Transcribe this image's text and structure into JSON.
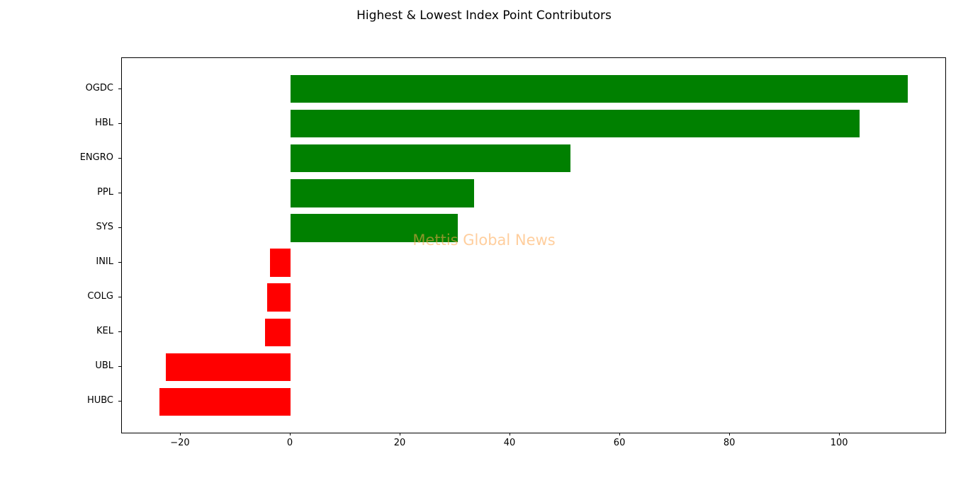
{
  "figure": {
    "watermark": {
      "text": "Mettis Global News",
      "color": "rgba(255, 166, 77, 0.55)"
    }
  },
  "chart_data": {
    "type": "bar",
    "orientation": "horizontal",
    "title": "Highest & Lowest Index Point Contributors",
    "categories": [
      "OGDC",
      "HBL",
      "ENGRO",
      "PPL",
      "SYS",
      "INIL",
      "COLG",
      "KEL",
      "UBL",
      "HUBC"
    ],
    "values": [
      112.4,
      103.6,
      51.0,
      33.4,
      30.5,
      -3.7,
      -4.3,
      -4.7,
      -22.7,
      -23.8
    ],
    "positive_color": "#008000",
    "negative_color": "#ff0000",
    "xlabel": "",
    "ylabel": "",
    "xlim": [
      -30.7,
      119.2
    ],
    "xticks": [
      -20,
      0,
      20,
      40,
      60,
      80,
      100
    ],
    "xtick_labels": [
      "−20",
      "0",
      "20",
      "40",
      "60",
      "80",
      "100"
    ],
    "bar_height_frac": 0.8,
    "grid": false,
    "legend": false
  }
}
